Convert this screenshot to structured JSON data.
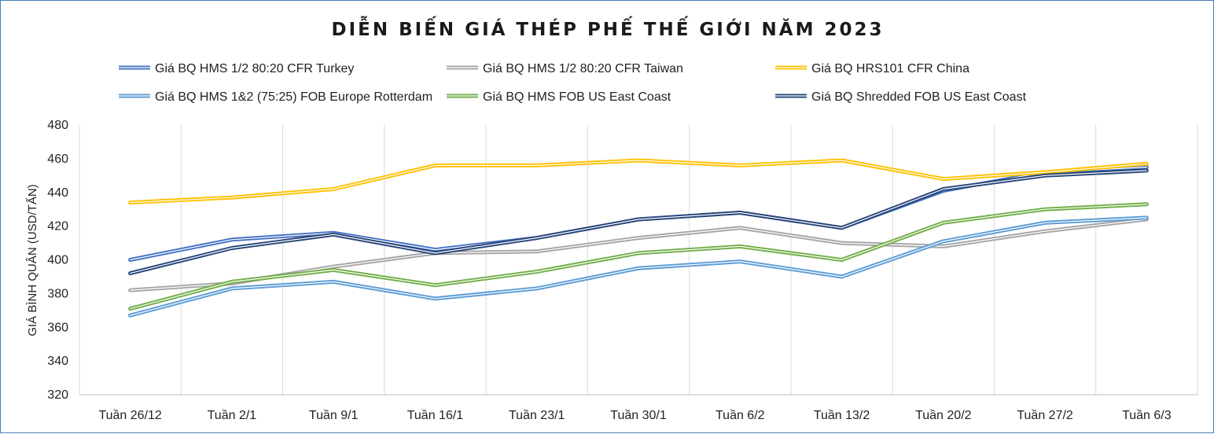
{
  "chart_data": {
    "type": "line",
    "title": "DIỄN BIẾN GIÁ THÉP PHẾ THẾ GIỚI NĂM 2023",
    "xlabel": "",
    "ylabel": "GIÁ BÌNH QUÂN (USD/TẤN)",
    "ylim": [
      320,
      480
    ],
    "yticks": [
      320,
      340,
      360,
      380,
      400,
      420,
      440,
      460,
      480
    ],
    "grid": "vertical",
    "legend_position": "top",
    "categories": [
      "Tuần 26/12",
      "Tuần 2/1",
      "Tuần 9/1",
      "Tuần 16/1",
      "Tuần 23/1",
      "Tuần 30/1",
      "Tuần 6/2",
      "Tuần 13/2",
      "Tuần 20/2",
      "Tuần 27/2",
      "Tuần 6/3"
    ],
    "series": [
      {
        "name": "Giá BQ HMS 1/2 80:20 CFR Turkey",
        "color": "#4472c4",
        "values": [
          400,
          412,
          416,
          406,
          413,
          424,
          428,
          419,
          441,
          452,
          455
        ]
      },
      {
        "name": "Giá BQ HMS 1/2 80:20 CFR Taiwan",
        "color": "#a5a5a5",
        "values": [
          382,
          386,
          396,
          404,
          405,
          413,
          419,
          410,
          408,
          417,
          424
        ]
      },
      {
        "name": "Giá BQ HRS101 CFR China",
        "color": "#ffc000",
        "values": [
          434,
          437,
          442,
          456,
          456,
          459,
          456,
          459,
          448,
          452,
          457
        ]
      },
      {
        "name": "Giá BQ HMS 1&2 (75:25) FOB Europe Rotterdam",
        "color": "#5b9bd5",
        "values": [
          367,
          383,
          387,
          377,
          383,
          395,
          399,
          390,
          411,
          422,
          425
        ]
      },
      {
        "name": "Giá BQ HMS FOB US East Coast",
        "color": "#70ad47",
        "values": [
          371,
          387,
          394,
          385,
          393,
          404,
          408,
          400,
          422,
          430,
          433
        ]
      },
      {
        "name": "Giá BQ Shredded FOB US East Coast",
        "color": "#264478",
        "values": [
          392,
          407,
          415,
          404,
          413,
          424,
          428,
          419,
          442,
          450,
          453
        ]
      }
    ]
  }
}
